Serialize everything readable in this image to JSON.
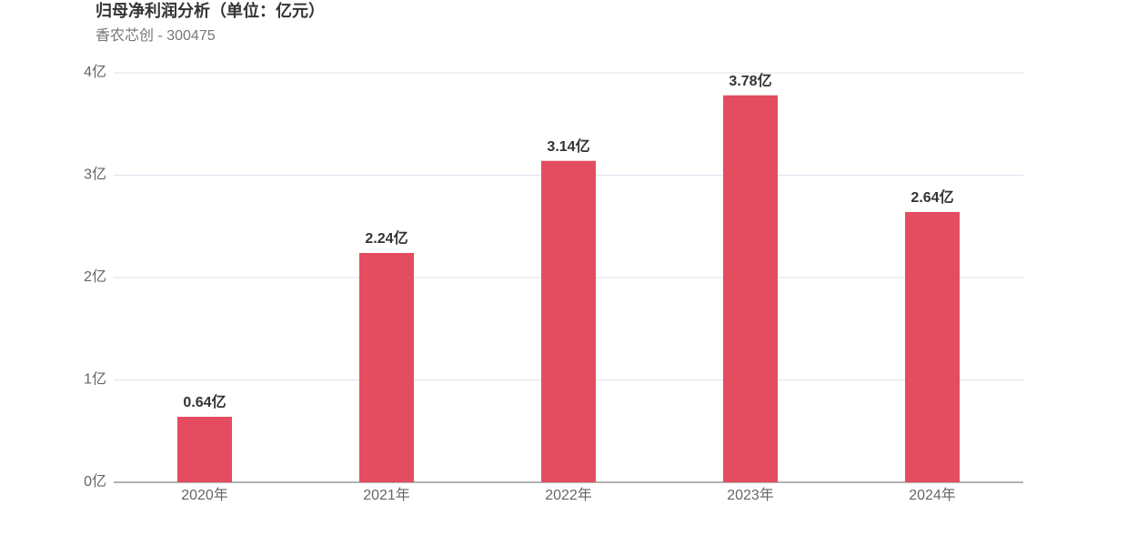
{
  "chart_data": {
    "type": "bar",
    "title": "归母净利润分析（单位：亿元）",
    "subtitle": "香农芯创 - 300475",
    "categories": [
      "2020年",
      "2021年",
      "2022年",
      "2023年",
      "2024年"
    ],
    "values": [
      0.64,
      2.24,
      3.14,
      3.78,
      2.64
    ],
    "value_labels": [
      "0.64亿",
      "2.24亿",
      "3.14亿",
      "3.78亿",
      "2.64亿"
    ],
    "color": "#e44c5f",
    "ylim": [
      0,
      4
    ],
    "yticks": [
      {
        "value": 0,
        "label": "0亿"
      },
      {
        "value": 1,
        "label": "1亿"
      },
      {
        "value": 2,
        "label": "2亿"
      },
      {
        "value": 3,
        "label": "3亿"
      },
      {
        "value": 4,
        "label": "4亿"
      }
    ],
    "grid": true
  }
}
